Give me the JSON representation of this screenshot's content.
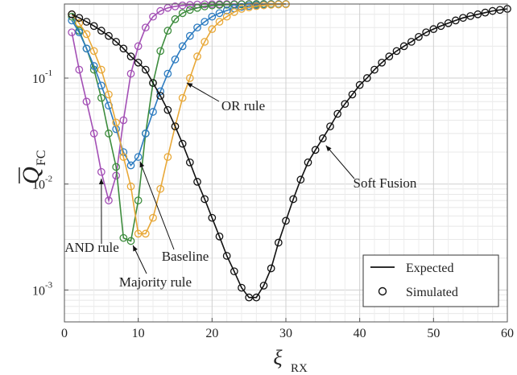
{
  "chart_data": {
    "type": "line",
    "xlabel": "ξ",
    "xlabel_sub": "RX",
    "ylabel": "Q",
    "ylabel_sub": "FC",
    "xlim": [
      0,
      60
    ],
    "ylim": [
      0.0005,
      0.5
    ],
    "yscale": "log",
    "grid": true,
    "legend_position": "bottom-right",
    "x_ticks": [
      0,
      10,
      20,
      30,
      40,
      50,
      60
    ],
    "x_tick_labels": [
      "0",
      "10",
      "20",
      "30",
      "40",
      "50",
      "60"
    ],
    "y_ticks": [
      0.001,
      0.01,
      0.1
    ],
    "y_tick_labels": [
      {
        "base": "10",
        "exp": "-3"
      },
      {
        "base": "10",
        "exp": "-2"
      },
      {
        "base": "10",
        "exp": "-1"
      }
    ],
    "legend": [
      {
        "label": "Expected",
        "marker": "line"
      },
      {
        "label": "Simulated",
        "marker": "circle"
      }
    ],
    "series": [
      {
        "name": "AND rule",
        "color": "#a34fb5",
        "x": [
          1,
          2,
          3,
          4,
          5,
          6,
          7,
          8,
          9,
          10,
          11,
          12,
          13,
          14,
          15,
          16,
          17,
          18,
          19,
          20,
          21,
          22,
          23,
          24,
          25,
          26,
          27,
          28,
          29,
          30
        ],
        "y": [
          0.27,
          0.12,
          0.06,
          0.03,
          0.013,
          0.007,
          0.012,
          0.04,
          0.11,
          0.2,
          0.3,
          0.38,
          0.43,
          0.46,
          0.475,
          0.485,
          0.49,
          0.495,
          0.497,
          0.498,
          0.499,
          0.5,
          0.5,
          0.5,
          0.5,
          0.5,
          0.5,
          0.5,
          0.5,
          0.5
        ]
      },
      {
        "name": "Majority rule",
        "color": "#3d8c3d",
        "x": [
          1,
          2,
          3,
          4,
          5,
          6,
          7,
          8,
          9,
          10,
          11,
          12,
          13,
          14,
          15,
          16,
          17,
          18,
          19,
          20,
          21,
          22,
          23,
          24,
          25,
          26,
          27,
          28,
          29,
          30
        ],
        "y": [
          0.38,
          0.28,
          0.19,
          0.12,
          0.065,
          0.03,
          0.0145,
          0.0031,
          0.0029,
          0.007,
          0.03,
          0.09,
          0.18,
          0.28,
          0.36,
          0.41,
          0.44,
          0.46,
          0.475,
          0.485,
          0.49,
          0.493,
          0.495,
          0.497,
          0.498,
          0.5,
          0.5,
          0.5,
          0.5,
          0.5
        ]
      },
      {
        "name": "Baseline",
        "color": "#2c7bc0",
        "x": [
          1,
          2,
          3,
          4,
          5,
          6,
          7,
          8,
          9,
          10,
          11,
          12,
          13,
          14,
          15,
          16,
          17,
          18,
          19,
          20,
          21,
          22,
          23,
          24,
          25,
          26,
          27,
          28,
          29,
          30
        ],
        "y": [
          0.35,
          0.27,
          0.19,
          0.13,
          0.085,
          0.055,
          0.033,
          0.02,
          0.015,
          0.018,
          0.03,
          0.048,
          0.075,
          0.11,
          0.15,
          0.2,
          0.25,
          0.3,
          0.34,
          0.38,
          0.41,
          0.435,
          0.455,
          0.47,
          0.48,
          0.487,
          0.492,
          0.495,
          0.497,
          0.498
        ]
      },
      {
        "name": "OR rule",
        "color": "#e8a838",
        "x": [
          1,
          2,
          3,
          4,
          5,
          6,
          7,
          8,
          9,
          10,
          11,
          12,
          13,
          14,
          15,
          16,
          17,
          18,
          19,
          20,
          21,
          22,
          23,
          24,
          25,
          26,
          27,
          28,
          29,
          30
        ],
        "y": [
          0.4,
          0.33,
          0.26,
          0.18,
          0.12,
          0.07,
          0.038,
          0.018,
          0.0095,
          0.0034,
          0.0034,
          0.0048,
          0.009,
          0.018,
          0.035,
          0.065,
          0.1,
          0.16,
          0.22,
          0.29,
          0.34,
          0.38,
          0.42,
          0.45,
          0.465,
          0.478,
          0.486,
          0.492,
          0.495,
          0.497
        ]
      },
      {
        "name": "Soft Fusion",
        "color": "#111111",
        "x": [
          1,
          2,
          3,
          4,
          5,
          6,
          7,
          8,
          9,
          10,
          11,
          12,
          13,
          14,
          15,
          16,
          17,
          18,
          19,
          20,
          21,
          22,
          23,
          24,
          25,
          26,
          27,
          28,
          29,
          30,
          31,
          32,
          33,
          34,
          35,
          36,
          37,
          38,
          39,
          40,
          41,
          42,
          43,
          44,
          45,
          46,
          47,
          48,
          49,
          50,
          51,
          52,
          53,
          54,
          55,
          56,
          57,
          58,
          59,
          60
        ],
        "y": [
          0.4,
          0.37,
          0.34,
          0.31,
          0.28,
          0.25,
          0.22,
          0.19,
          0.16,
          0.14,
          0.12,
          0.09,
          0.068,
          0.05,
          0.035,
          0.024,
          0.016,
          0.0105,
          0.0072,
          0.0048,
          0.0032,
          0.0021,
          0.0015,
          0.00105,
          0.00085,
          0.00085,
          0.0011,
          0.0016,
          0.0028,
          0.0045,
          0.0072,
          0.011,
          0.016,
          0.021,
          0.027,
          0.035,
          0.046,
          0.057,
          0.07,
          0.086,
          0.1,
          0.12,
          0.14,
          0.16,
          0.18,
          0.2,
          0.22,
          0.245,
          0.27,
          0.29,
          0.31,
          0.33,
          0.35,
          0.37,
          0.385,
          0.4,
          0.415,
          0.43,
          0.44,
          0.45
        ]
      }
    ],
    "annotations": [
      {
        "text": "AND rule",
        "series": "AND rule",
        "point_x": 5,
        "point_y": 0.0125
      },
      {
        "text": "Majority rule",
        "series": "Majority rule",
        "point_x": 9,
        "point_y": 0.0029
      },
      {
        "text": "Baseline",
        "series": "Baseline",
        "point_x": 10,
        "point_y": 0.018
      },
      {
        "text": "OR rule",
        "series": "OR rule",
        "point_x": 16,
        "point_y": 0.095
      },
      {
        "text": "Soft Fusion",
        "series": "Soft Fusion",
        "point_x": 35,
        "point_y": 0.025
      }
    ]
  }
}
